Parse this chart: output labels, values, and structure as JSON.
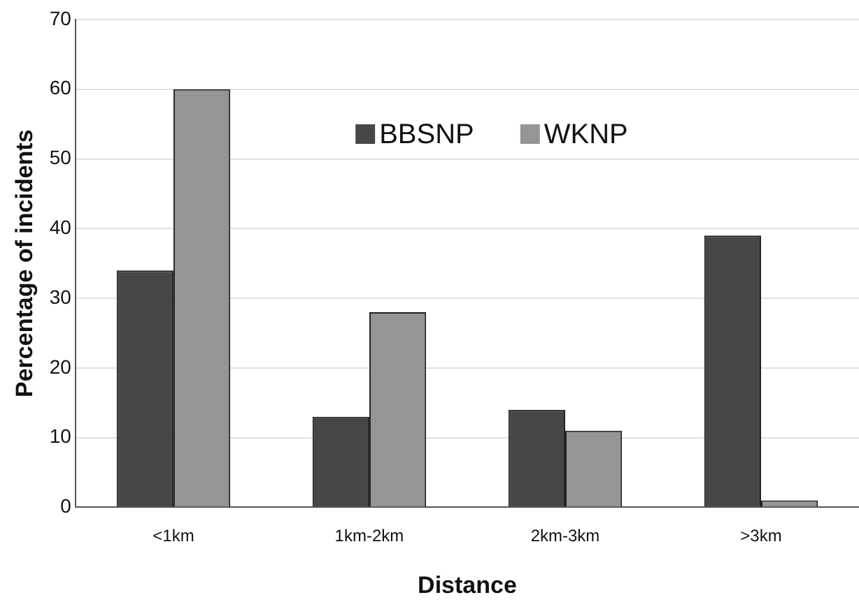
{
  "chart_data": {
    "type": "bar",
    "xlabel": "Distance",
    "ylabel": "Percentage of incidents",
    "categories": [
      "<1km",
      "1km-2km",
      "2km-3km",
      ">3km"
    ],
    "series": [
      {
        "name": "BBSNP",
        "color": "#474747",
        "values": [
          34,
          13,
          14,
          39
        ]
      },
      {
        "name": "WKNP",
        "color": "#959595",
        "values": [
          60,
          28,
          11,
          1
        ]
      }
    ],
    "ylim": [
      0,
      70
    ],
    "yticks": [
      0,
      10,
      20,
      30,
      40,
      50,
      60,
      70
    ],
    "grid": "y",
    "legend": "top"
  }
}
